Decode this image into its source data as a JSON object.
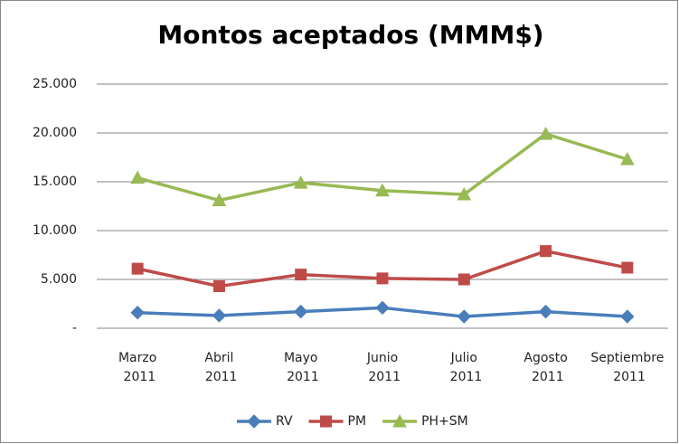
{
  "chart_data": {
    "type": "line",
    "title": "Montos aceptados (MMM$)",
    "categories": [
      "Marzo 2011",
      "Abril 2011",
      "Mayo 2011",
      "Junio 2011",
      "Julio 2011",
      "Agosto 2011",
      "Septiembre 2011"
    ],
    "series": [
      {
        "name": "RV",
        "color": "#4a7ebb",
        "marker": "diamond",
        "values": [
          1600,
          1300,
          1700,
          2100,
          1200,
          1700,
          1200
        ]
      },
      {
        "name": "PM",
        "color": "#be4b48",
        "marker": "square",
        "values": [
          6100,
          4300,
          5500,
          5100,
          5000,
          7900,
          6200
        ]
      },
      {
        "name": "PH+SM",
        "color": "#98b954",
        "marker": "triangle",
        "values": [
          15400,
          13100,
          14900,
          14100,
          13700,
          19900,
          17300
        ]
      }
    ],
    "ylim": [
      0,
      25000
    ],
    "yticks": [
      {
        "value": 0,
        "label": "-"
      },
      {
        "value": 5000,
        "label": "5.000"
      },
      {
        "value": 10000,
        "label": "10.000"
      },
      {
        "value": 15000,
        "label": "15.000"
      },
      {
        "value": 20000,
        "label": "20.000"
      },
      {
        "value": 25000,
        "label": "25.000"
      }
    ],
    "grid": true,
    "legend": "bottom"
  }
}
